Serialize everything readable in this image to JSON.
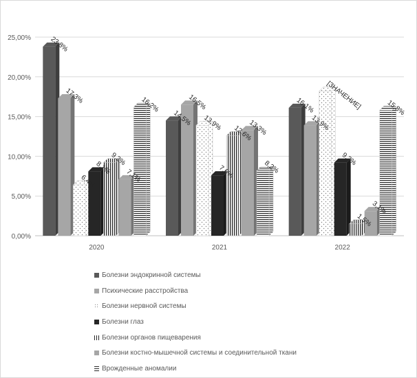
{
  "chart_data": {
    "type": "bar",
    "title": "",
    "xlabel": "",
    "ylabel": "",
    "categories": [
      "2020",
      "2021",
      "2022"
    ],
    "ylim": [
      0,
      25
    ],
    "yticks": [
      "0,00%",
      "5,00%",
      "10,00%",
      "15,00%",
      "20,00%",
      "25,00%"
    ],
    "grid": true,
    "legend_position": "bottom",
    "series": [
      {
        "name": "Болезни эндокринной системы",
        "values": [
          23.8,
          14.5,
          16.1
        ],
        "labels": [
          "23,8%",
          "14,5%",
          "16,1%"
        ],
        "color": "#595959",
        "pattern": "solid"
      },
      {
        "name": "Психические расстройства",
        "values": [
          17.3,
          16.5,
          13.9
        ],
        "labels": [
          "17,3%",
          "16,5%",
          "13,9%"
        ],
        "color": "#a6a6a6",
        "pattern": "solid"
      },
      {
        "name": "Болезни нервной системы",
        "values": [
          6.4,
          13.9,
          18.2
        ],
        "labels": [
          "6,4%",
          "13,9%",
          "[ЗНАЧЕНИЕ]"
        ],
        "color": "#ffffff",
        "pattern": "dots"
      },
      {
        "name": "Болезни глаз",
        "values": [
          8.1,
          7.6,
          9.2
        ],
        "labels": [
          "8,1%",
          "7,6%",
          "9,2%"
        ],
        "color": "#262626",
        "pattern": "solid"
      },
      {
        "name": "Болезни органов пищеварения",
        "values": [
          9.2,
          12.6,
          1.5
        ],
        "labels": [
          "9,2%",
          "12,6%",
          "1,5%"
        ],
        "color": "#ffffff",
        "pattern": "vertical"
      },
      {
        "name": "Болезни костно-мышечной системы и соединительной ткани",
        "values": [
          7.1,
          13.3,
          3.1
        ],
        "labels": [
          "7,1%",
          "13,3%",
          "3,1%"
        ],
        "color": "#a6a6a6",
        "pattern": "solid-light"
      },
      {
        "name": "Врожденные аномалии",
        "values": [
          16.2,
          8.2,
          15.8
        ],
        "labels": [
          "16,2%",
          "8,2%",
          "15,8%"
        ],
        "color": "#ffffff",
        "pattern": "horizontal"
      }
    ]
  }
}
